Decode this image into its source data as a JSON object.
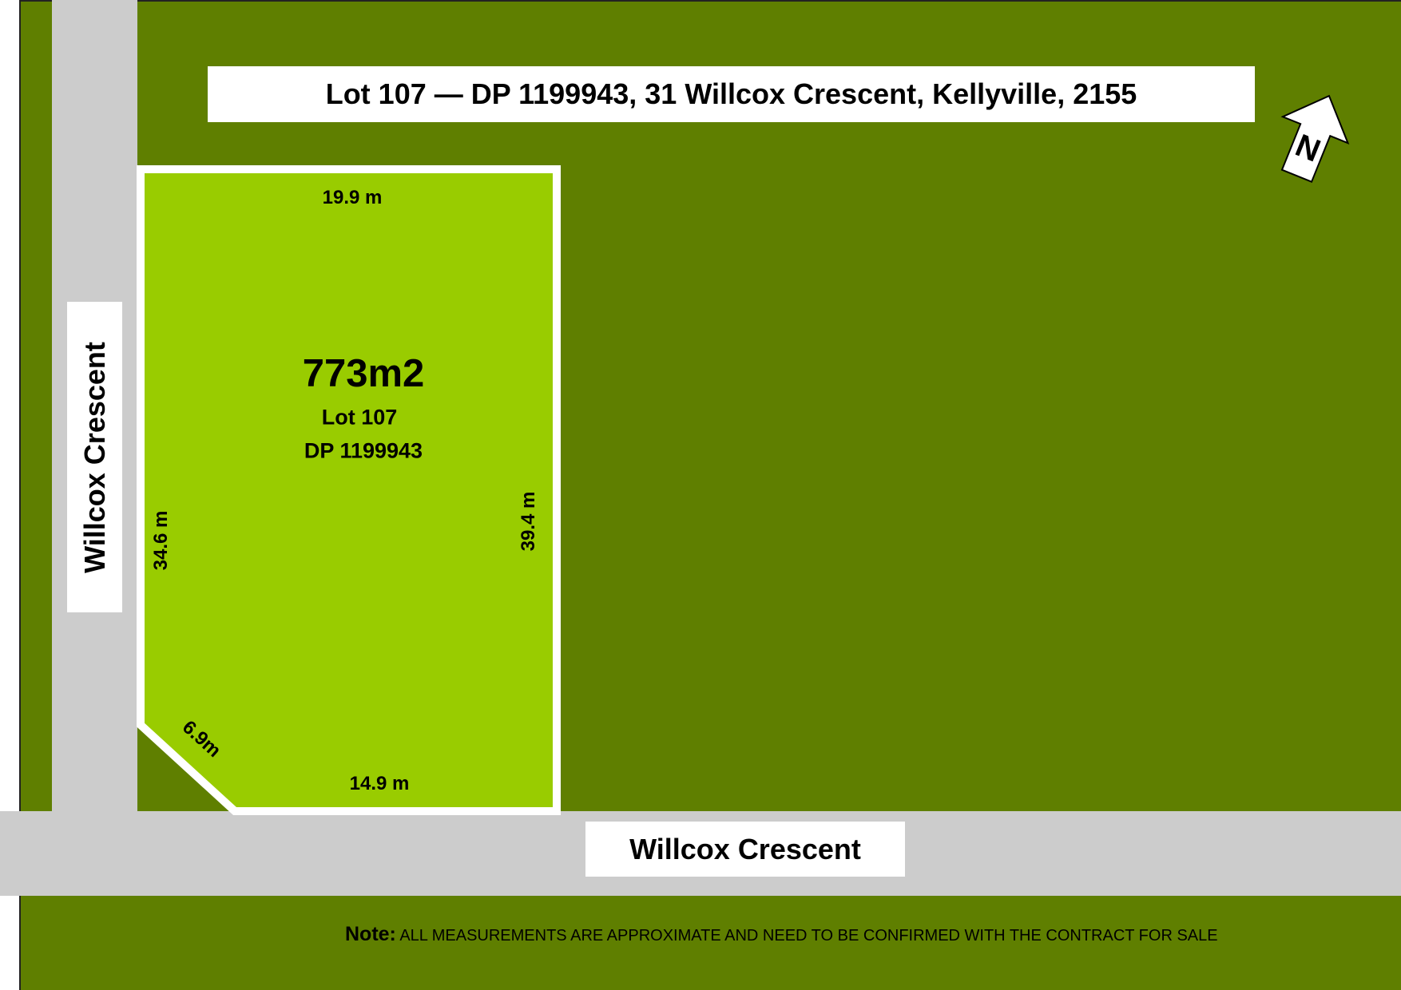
{
  "title": "Lot 107 — DP 1199943, 31 Willcox Crescent, Kellyville, 2155",
  "north_label": "N",
  "streets": {
    "side": "Willcox Crescent",
    "front": "Willcox Crescent"
  },
  "lot": {
    "area": "773m2",
    "lot_number": "Lot 107",
    "plan": "DP 1199943",
    "dimensions": {
      "top": "19.9 m",
      "left": "34.6 m",
      "right": "39.4 m",
      "corner": "6.9m",
      "bottom": "14.9 m"
    }
  },
  "note": {
    "label": "Note:",
    "text": "ALL MEASUREMENTS ARE APPROXIMATE AND NEED TO BE CONFIRMED WITH THE CONTRACT FOR SALE"
  },
  "colors": {
    "surrounding": "#5f7f00",
    "lot": "#99cc00",
    "road": "#cccccc",
    "border": "#ffffff"
  }
}
